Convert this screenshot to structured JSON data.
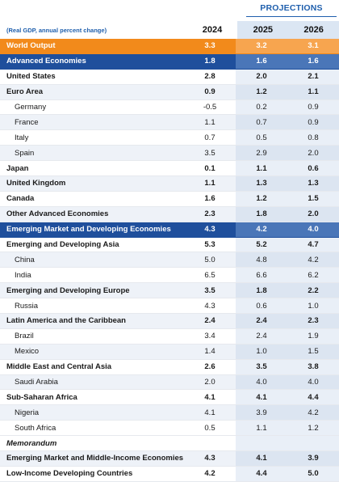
{
  "header": {
    "projections_label": "PROJECTIONS",
    "note": "(Real GDP, annual percent change)",
    "years": [
      "2024",
      "2025",
      "2026"
    ]
  },
  "rows": [
    {
      "name": "World Output",
      "v": [
        "3.3",
        "3.2",
        "3.1"
      ],
      "style": "world"
    },
    {
      "name": "Advanced Economies",
      "v": [
        "1.8",
        "1.6",
        "1.6"
      ],
      "style": "adv"
    },
    {
      "name": "United States",
      "v": [
        "2.8",
        "2.0",
        "2.1"
      ],
      "style": "bold"
    },
    {
      "name": "Euro Area",
      "v": [
        "0.9",
        "1.2",
        "1.1"
      ],
      "style": "bold"
    },
    {
      "name": "Germany",
      "v": [
        "-0.5",
        "0.2",
        "0.9"
      ],
      "style": "indent"
    },
    {
      "name": "France",
      "v": [
        "1.1",
        "0.7",
        "0.9"
      ],
      "style": "indent"
    },
    {
      "name": "Italy",
      "v": [
        "0.7",
        "0.5",
        "0.8"
      ],
      "style": "indent"
    },
    {
      "name": "Spain",
      "v": [
        "3.5",
        "2.9",
        "2.0"
      ],
      "style": "indent"
    },
    {
      "name": "Japan",
      "v": [
        "0.1",
        "1.1",
        "0.6"
      ],
      "style": "bold"
    },
    {
      "name": "United Kingdom",
      "v": [
        "1.1",
        "1.3",
        "1.3"
      ],
      "style": "bold"
    },
    {
      "name": "Canada",
      "v": [
        "1.6",
        "1.2",
        "1.5"
      ],
      "style": "bold"
    },
    {
      "name": "Other Advanced Economies",
      "v": [
        "2.3",
        "1.8",
        "2.0"
      ],
      "style": "bold"
    },
    {
      "name": "Emerging Market and Developing Economies",
      "v": [
        "4.3",
        "4.2",
        "4.0"
      ],
      "style": "adv"
    },
    {
      "name": "Emerging and Developing Asia",
      "v": [
        "5.3",
        "5.2",
        "4.7"
      ],
      "style": "bold"
    },
    {
      "name": "China",
      "v": [
        "5.0",
        "4.8",
        "4.2"
      ],
      "style": "indent"
    },
    {
      "name": "India",
      "v": [
        "6.5",
        "6.6",
        "6.2"
      ],
      "style": "indent"
    },
    {
      "name": "Emerging and Developing Europe",
      "v": [
        "3.5",
        "1.8",
        "2.2"
      ],
      "style": "bold"
    },
    {
      "name": "Russia",
      "v": [
        "4.3",
        "0.6",
        "1.0"
      ],
      "style": "indent"
    },
    {
      "name": "Latin America and the Caribbean",
      "v": [
        "2.4",
        "2.4",
        "2.3"
      ],
      "style": "bold"
    },
    {
      "name": "Brazil",
      "v": [
        "3.4",
        "2.4",
        "1.9"
      ],
      "style": "indent"
    },
    {
      "name": "Mexico",
      "v": [
        "1.4",
        "1.0",
        "1.5"
      ],
      "style": "indent"
    },
    {
      "name": "Middle East and Central Asia",
      "v": [
        "2.6",
        "3.5",
        "3.8"
      ],
      "style": "bold"
    },
    {
      "name": "Saudi Arabia",
      "v": [
        "2.0",
        "4.0",
        "4.0"
      ],
      "style": "indent"
    },
    {
      "name": "Sub-Saharan Africa",
      "v": [
        "4.1",
        "4.1",
        "4.4"
      ],
      "style": "bold"
    },
    {
      "name": "Nigeria",
      "v": [
        "4.1",
        "3.9",
        "4.2"
      ],
      "style": "indent"
    },
    {
      "name": "South Africa",
      "v": [
        "0.5",
        "1.1",
        "1.2"
      ],
      "style": "indent"
    },
    {
      "name": "Memorandum",
      "v": [
        "",
        "",
        ""
      ],
      "style": "memo"
    },
    {
      "name": "Emerging Market and Middle-Income Economies",
      "v": [
        "4.3",
        "4.1",
        "3.9"
      ],
      "style": "bold"
    },
    {
      "name": "Low-Income Developing Countries",
      "v": [
        "4.2",
        "4.4",
        "5.0"
      ],
      "style": "bold"
    }
  ]
}
